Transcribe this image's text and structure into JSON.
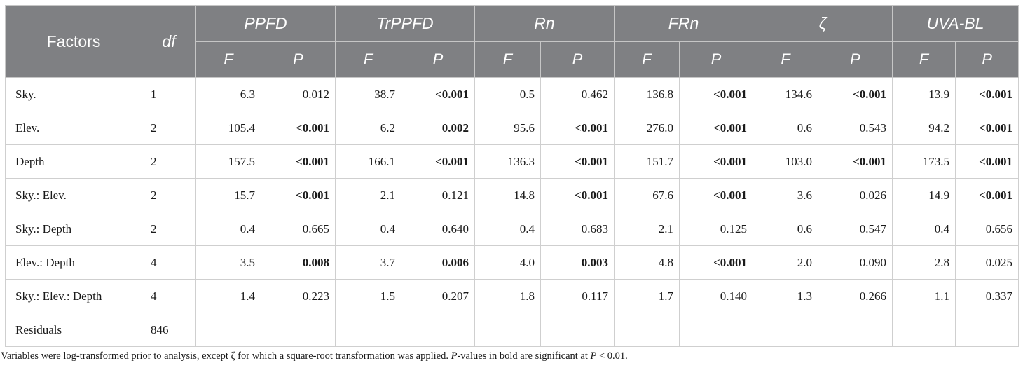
{
  "table": {
    "headers": {
      "factors": "Factors",
      "df": "df",
      "groups": [
        "PPFD",
        "TrPPFD",
        "Rn",
        "FRn",
        "ζ",
        "UVA-BL"
      ],
      "sub_f": "F",
      "sub_p": "P"
    },
    "rows": [
      {
        "factor": "Sky.",
        "df": "1",
        "cells": [
          {
            "f": "6.3",
            "p": "0.012"
          },
          {
            "f": "38.7",
            "p": "<0.001"
          },
          {
            "f": "0.5",
            "p": "0.462"
          },
          {
            "f": "136.8",
            "p": "<0.001"
          },
          {
            "f": "134.6",
            "p": "<0.001"
          },
          {
            "f": "13.9",
            "p": "<0.001"
          }
        ]
      },
      {
        "factor": "Elev.",
        "df": "2",
        "cells": [
          {
            "f": "105.4",
            "p": "<0.001"
          },
          {
            "f": "6.2",
            "p": "0.002"
          },
          {
            "f": "95.6",
            "p": "<0.001"
          },
          {
            "f": "276.0",
            "p": "<0.001"
          },
          {
            "f": "0.6",
            "p": "0.543"
          },
          {
            "f": "94.2",
            "p": "<0.001"
          }
        ]
      },
      {
        "factor": "Depth",
        "df": "2",
        "cells": [
          {
            "f": "157.5",
            "p": "<0.001"
          },
          {
            "f": "166.1",
            "p": "<0.001"
          },
          {
            "f": "136.3",
            "p": "<0.001"
          },
          {
            "f": "151.7",
            "p": "<0.001"
          },
          {
            "f": "103.0",
            "p": "<0.001"
          },
          {
            "f": "173.5",
            "p": "<0.001"
          }
        ]
      },
      {
        "factor": "Sky.: Elev.",
        "df": "2",
        "cells": [
          {
            "f": "15.7",
            "p": "<0.001"
          },
          {
            "f": "2.1",
            "p": "0.121"
          },
          {
            "f": "14.8",
            "p": "<0.001"
          },
          {
            "f": "67.6",
            "p": "<0.001"
          },
          {
            "f": "3.6",
            "p": "0.026"
          },
          {
            "f": "14.9",
            "p": "<0.001"
          }
        ]
      },
      {
        "factor": "Sky.: Depth",
        "df": "2",
        "cells": [
          {
            "f": "0.4",
            "p": "0.665"
          },
          {
            "f": "0.4",
            "p": "0.640"
          },
          {
            "f": "0.4",
            "p": "0.683"
          },
          {
            "f": "2.1",
            "p": "0.125"
          },
          {
            "f": "0.6",
            "p": "0.547"
          },
          {
            "f": "0.4",
            "p": "0.656"
          }
        ]
      },
      {
        "factor": "Elev.: Depth",
        "df": "4",
        "cells": [
          {
            "f": "3.5",
            "p": "0.008"
          },
          {
            "f": "3.7",
            "p": "0.006"
          },
          {
            "f": "4.0",
            "p": "0.003"
          },
          {
            "f": "4.8",
            "p": "<0.001"
          },
          {
            "f": "2.0",
            "p": "0.090"
          },
          {
            "f": "2.8",
            "p": "0.025"
          }
        ]
      },
      {
        "factor": "Sky.: Elev.: Depth",
        "df": "4",
        "cells": [
          {
            "f": "1.4",
            "p": "0.223"
          },
          {
            "f": "1.5",
            "p": "0.207"
          },
          {
            "f": "1.8",
            "p": "0.117"
          },
          {
            "f": "1.7",
            "p": "0.140"
          },
          {
            "f": "1.3",
            "p": "0.266"
          },
          {
            "f": "1.1",
            "p": "0.337"
          }
        ]
      },
      {
        "factor": "Residuals",
        "df": "846",
        "cells": [
          {
            "f": "",
            "p": ""
          },
          {
            "f": "",
            "p": ""
          },
          {
            "f": "",
            "p": ""
          },
          {
            "f": "",
            "p": ""
          },
          {
            "f": "",
            "p": ""
          },
          {
            "f": "",
            "p": ""
          }
        ]
      }
    ]
  },
  "footnote": {
    "part1": "Variables were log-transformed prior to analysis, except ζ for which a square-root transformation was applied. ",
    "p_italic": "P",
    "part2": "-values in bold are significant at ",
    "p_italic2": "P",
    "part3": " < 0.01."
  },
  "colors": {
    "header_bg": "#7f8083",
    "header_text": "#ffffff",
    "grid": "#cfcfcf"
  }
}
